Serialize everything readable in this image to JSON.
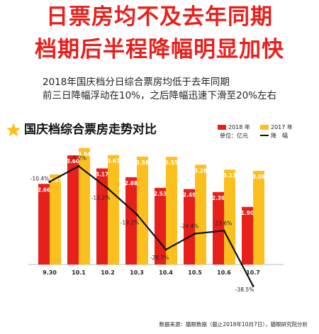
{
  "headline": {
    "line1": "日票房均不及去年同期",
    "line2": "档期后半程降幅明显加快"
  },
  "subtitle": {
    "line1": "2018年国庆档分日综合票房均低于去年同期",
    "line2": "前三日降幅浮动在10%，之后降幅迅速下滑至20%左右"
  },
  "colors": {
    "accent": "#e8201c",
    "y2018": "#e8201c",
    "y2017": "#fbbf1e",
    "line": "#111111"
  },
  "icon": "star-icon",
  "watermark": "猫眼研究院",
  "footer": "数据来源：猫眼数据（截止2018年10月7日），猫眼研究院分析",
  "chart_data": {
    "type": "bar",
    "title": "国庆档综合票房走势对比",
    "unit_label": "单位：亿元",
    "legend": [
      "2018 年",
      "2017 年",
      "降　幅"
    ],
    "legend_position": "top-right",
    "categories": [
      "9.30",
      "10.1",
      "10.2",
      "10.3",
      "10.4",
      "10.5",
      "10.6",
      "10.7"
    ],
    "series": [
      {
        "name": "2018 年",
        "values": [
          2.66,
          3.6,
          3.17,
          2.88,
          2.53,
          2.49,
          2.39,
          1.9
        ],
        "labels": [
          "2.66",
          "3.60",
          "3.17",
          "2.88",
          "2.53",
          "2.49",
          "2.39",
          "1.90"
        ]
      },
      {
        "name": "2017 年",
        "values": [
          2.97,
          3.84,
          3.61,
          3.56,
          3.55,
          3.29,
          3.13,
          3.09
        ],
        "labels": [
          "2.97",
          "3.84",
          "3.61",
          "3.56",
          "3.55",
          "3.29",
          "3.13",
          "3.09"
        ]
      }
    ],
    "line_series": {
      "name": "降　幅",
      "values": [
        -10.4,
        -6.2,
        -12.2,
        -19.2,
        -28.7,
        -24.4,
        -23.6,
        -38.5
      ],
      "labels": [
        "-10.4%",
        "-6.2%",
        "-12.2%",
        "-19.2%",
        "-28.7%",
        "-24.4%",
        "-23.6%",
        "-38.5%"
      ]
    },
    "ylim_bars": [
      0,
      4.0
    ],
    "ylim_line": [
      -40,
      0
    ],
    "grid": false
  }
}
